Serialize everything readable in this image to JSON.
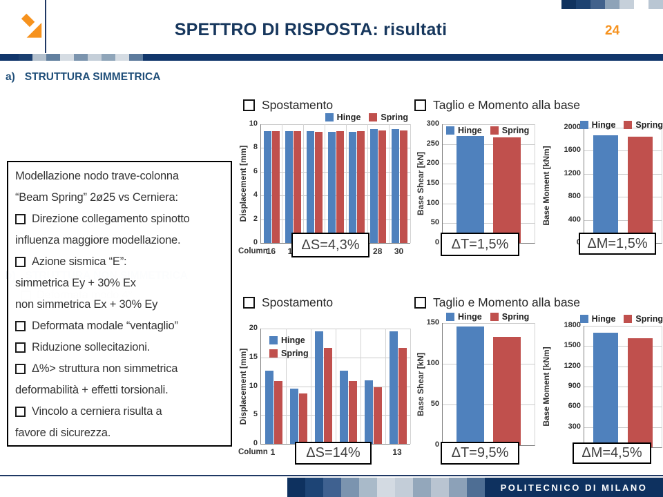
{
  "slide": {
    "header": {
      "title": "SPETTRO DI RISPOSTA: risultati",
      "page_number": "24"
    },
    "section_a_prefix": "a)",
    "section_a_label": "STRUTTURA SIMMETRICA",
    "watermark": {
      "prefix": "b)",
      "line1": "STRUTTURA NON SIMMETRICA",
      "line2": "Deformata modo 4°"
    },
    "footer_brand": "POLITECNICO DI MILANO"
  },
  "note_box": {
    "lines": [
      {
        "bullet": false,
        "text": "Modellazione nodo trave-colonna"
      },
      {
        "bullet": false,
        "text": "“Beam Spring” 2ø25 vs Cerniera:"
      },
      {
        "bullet": true,
        "text": "Direzione collegamento spinotto"
      },
      {
        "bullet": false,
        "text": "influenza maggiore modellazione."
      },
      {
        "bullet": true,
        "text": "Azione sismica “E”:"
      },
      {
        "bullet": false,
        "text": "simmetrica Ey + 30% Ex"
      },
      {
        "bullet": false,
        "text": "non simmetrica  Ex + 30% Ey"
      },
      {
        "bullet": true,
        "text": "Deformata modale “ventaglio”"
      },
      {
        "bullet": true,
        "text": "Riduzione sollecitazioni."
      },
      {
        "bullet": true,
        "text": "Δ%> struttura non simmetrica"
      },
      {
        "bullet": false,
        "text": "deformabilità + effetti torsionali."
      },
      {
        "bullet": true,
        "text": "Vincolo a cerniera risulta a"
      },
      {
        "bullet": false,
        "text": "favore di sicurezza."
      }
    ]
  },
  "chart_sections": {
    "top_left_title": "Spostamento",
    "top_right_title": "Taglio e Momento alla base",
    "bottom_left_title": "Spostamento",
    "bottom_right_title": "Taglio e Momento alla base"
  },
  "colors": {
    "hinge": "#4F81BD",
    "spring": "#C0504D",
    "navy": "#0E315F",
    "accent_orange": "#F6921E",
    "title_blue": "#17375D",
    "section_blue": "#1F4E79"
  },
  "decorations": {
    "top_left_mosaic": [
      "#1A3F70",
      "#B3C0CD",
      "#62809F",
      "#D5DCE3",
      "#7B94AE",
      "#C5CFD9",
      "#8FA5B9",
      "#D5DCE3",
      "#5D7B9D"
    ],
    "top_right_mosaic": [
      "#10335F",
      "#1C4271",
      "#42628C",
      "#8EA3B8",
      "#C6D0DA",
      "#FFFFFF",
      "#B9C6D3"
    ],
    "footer_mosaic": [
      "#0E315F",
      "#1D4475",
      "#3F6190",
      "#7B94AF",
      "#A9BAC9",
      "#D3DAE2",
      "#C3CDD8",
      "#93A7BB",
      "#B9C4D1",
      "#8CA1B8",
      "#4E6E94"
    ]
  },
  "chart_data": [
    {
      "id": "disp_top",
      "type": "bar",
      "title": "Spostamento",
      "xlabel": "Column",
      "ylabel": "Displacement [mm]",
      "ylim": [
        0,
        10
      ],
      "ystep": 2,
      "grid": "horizontal+vertical",
      "categories": [
        "16",
        "18",
        "",
        "",
        "",
        "28",
        "30"
      ],
      "series": [
        {
          "name": "Hinge",
          "color": "#4F81BD",
          "values": [
            9.4,
            9.4,
            9.4,
            9.35,
            9.35,
            9.6,
            9.6
          ]
        },
        {
          "name": "Spring",
          "color": "#C0504D",
          "values": [
            9.4,
            9.4,
            9.35,
            9.4,
            9.4,
            9.5,
            9.5
          ]
        }
      ],
      "legend_position": "top-right",
      "delta_label": "ΔS=4,3%"
    },
    {
      "id": "shear_top",
      "type": "bar",
      "title": "Taglio e Momento alla base",
      "xlabel": "",
      "ylabel": "Base Shear [kN]",
      "ylim": [
        0,
        300
      ],
      "ystep": 50,
      "grid": "horizontal",
      "categories": [
        ""
      ],
      "series": [
        {
          "name": "Hinge",
          "color": "#4F81BD",
          "values": [
            271
          ]
        },
        {
          "name": "Spring",
          "color": "#C0504D",
          "values": [
            267
          ]
        }
      ],
      "legend_position": "top-center",
      "delta_label": "ΔT=1,5%"
    },
    {
      "id": "moment_top",
      "type": "bar",
      "title": "Taglio e Momento alla base",
      "xlabel": "",
      "ylabel": "Base Moment [kNm]",
      "ylim": [
        0,
        2000
      ],
      "ystep": 400,
      "grid": "horizontal",
      "categories": [
        ""
      ],
      "series": [
        {
          "name": "Hinge",
          "color": "#4F81BD",
          "values": [
            1870
          ]
        },
        {
          "name": "Spring",
          "color": "#C0504D",
          "values": [
            1845
          ]
        }
      ],
      "legend_position": "top-right",
      "delta_label": "ΔM=1,5%"
    },
    {
      "id": "disp_bot",
      "type": "bar",
      "title": "Spostamento",
      "xlabel": "Column",
      "ylabel": "Displacement [mm]",
      "ylim": [
        0,
        20
      ],
      "ystep": 5,
      "grid": "horizontal+vertical",
      "categories": [
        "1",
        "",
        "",
        "",
        "",
        "13"
      ],
      "series": [
        {
          "name": "Hinge",
          "color": "#4F81BD",
          "values": [
            12.7,
            9.6,
            19.5,
            12.7,
            11.0,
            19.5
          ]
        },
        {
          "name": "Spring",
          "color": "#C0504D",
          "values": [
            10.9,
            8.7,
            16.7,
            10.9,
            9.8,
            16.7
          ]
        }
      ],
      "legend_position": "top-left-inside",
      "delta_label": "ΔS=14%"
    },
    {
      "id": "shear_bot",
      "type": "bar",
      "title": "Taglio e Momento alla base",
      "xlabel": "",
      "ylabel": "Base Shear [kN]",
      "ylim": [
        0,
        150
      ],
      "ystep": 50,
      "grid": "horizontal",
      "categories": [
        ""
      ],
      "series": [
        {
          "name": "Hinge",
          "color": "#4F81BD",
          "values": [
            146
          ]
        },
        {
          "name": "Spring",
          "color": "#C0504D",
          "values": [
            133
          ]
        }
      ],
      "legend_position": "top-center",
      "delta_label": "ΔT=9,5%"
    },
    {
      "id": "moment_bot",
      "type": "bar",
      "title": "Taglio e Momento alla base",
      "xlabel": "",
      "ylabel": "Base Moment [kNm]",
      "ylim": [
        0,
        1800
      ],
      "ystep": 300,
      "grid": "horizontal",
      "categories": [
        ""
      ],
      "series": [
        {
          "name": "Hinge",
          "color": "#4F81BD",
          "values": [
            1700
          ]
        },
        {
          "name": "Spring",
          "color": "#C0504D",
          "values": [
            1620
          ]
        }
      ],
      "legend_position": "top-right",
      "delta_label": "ΔM=4,5%"
    }
  ]
}
